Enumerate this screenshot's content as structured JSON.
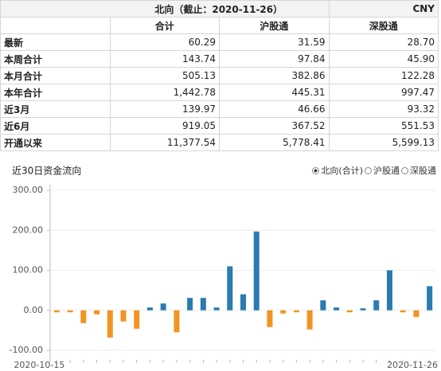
{
  "table": {
    "title": "北向（截止：2020-11-26）",
    "currency": "CNY",
    "columns": [
      "合计",
      "沪股通",
      "深股通"
    ],
    "rows": [
      [
        "最新",
        "60.29",
        "31.59",
        "28.70"
      ],
      [
        "本周合计",
        "143.74",
        "97.84",
        "45.90"
      ],
      [
        "本月合计",
        "505.13",
        "382.86",
        "122.28"
      ],
      [
        "本年合计",
        "1,442.78",
        "445.31",
        "997.47"
      ],
      [
        "近3月",
        "139.97",
        "46.66",
        "93.32"
      ],
      [
        "近6月",
        "919.05",
        "367.52",
        "551.53"
      ],
      [
        "开通以来",
        "11,377.54",
        "5,778.41",
        "5,599.13"
      ]
    ]
  },
  "chart_tabs": [
    "北向(合计)",
    "沪股通",
    "深股通"
  ],
  "chart_data": {
    "type": "bar",
    "title": "近30日资金流向",
    "categories": [
      "2020-10-15",
      null,
      null,
      null,
      null,
      null,
      null,
      null,
      null,
      null,
      null,
      null,
      null,
      null,
      null,
      null,
      null,
      null,
      null,
      null,
      null,
      null,
      null,
      null,
      null,
      null,
      null,
      null,
      "2020-11-26"
    ],
    "values": [
      -5,
      -5,
      -32,
      -10,
      -68,
      -28,
      -46,
      7,
      17,
      -55,
      31,
      31,
      7,
      110,
      40,
      197,
      -42,
      -8,
      -5,
      -48,
      25,
      7,
      -5,
      5,
      25,
      100,
      -5,
      -17,
      60.29
    ],
    "positive_color": "#2b7bb0",
    "negative_color": "#f29423",
    "ylim": [
      -100,
      300
    ],
    "yticks": [
      {
        "value": -100,
        "label": "-100.00"
      },
      {
        "value": 0,
        "label": "0.00"
      },
      {
        "value": 100,
        "label": "100.00"
      },
      {
        "value": 200,
        "label": "200.00"
      },
      {
        "value": 300,
        "label": "300.00"
      }
    ],
    "grid": true
  }
}
